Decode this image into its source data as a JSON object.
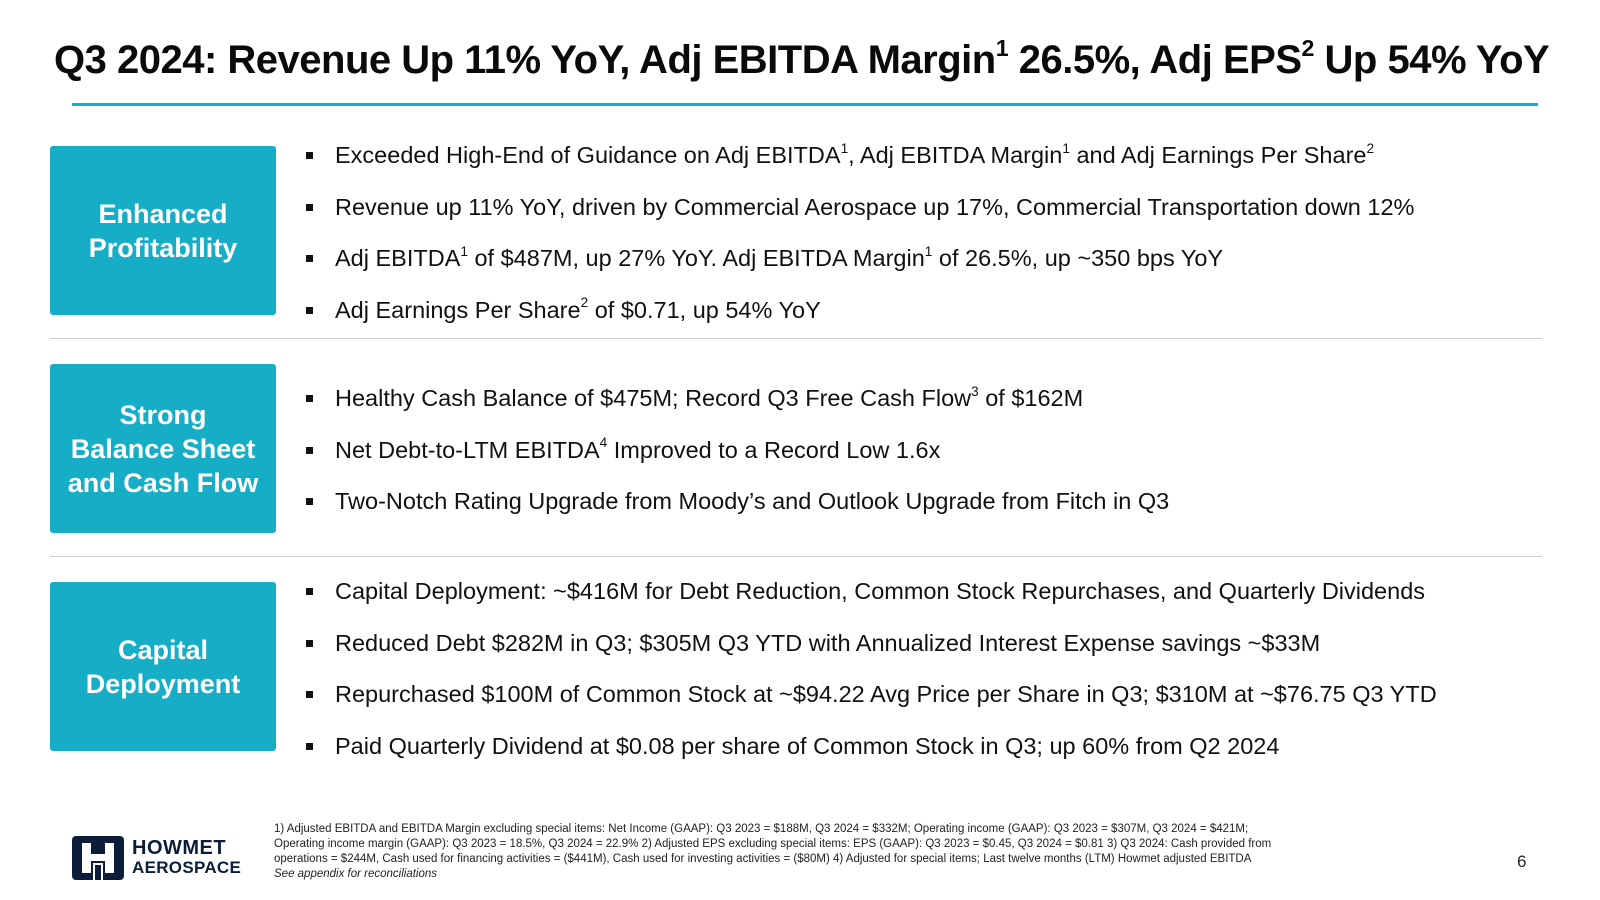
{
  "slide": {
    "title_parts": {
      "a": "Q3 2024: Revenue Up 11% YoY, Adj EBITDA Margin",
      "a_sup": "1",
      "b": " 26.5%, Adj EPS",
      "b_sup": "2",
      "c": " Up 54% YoY"
    },
    "accent_color": "#16adc6",
    "sections": [
      {
        "label": "Enhanced\nProfitability",
        "bullets": [
          [
            {
              "t": "Exceeded High-End of Guidance on Adj EBITDA"
            },
            {
              "sup": "1"
            },
            {
              "t": ", Adj EBITDA Margin"
            },
            {
              "sup": "1"
            },
            {
              "t": " and Adj Earnings Per Share"
            },
            {
              "sup": "2"
            }
          ],
          [
            {
              "t": "Revenue up 11% YoY, driven by Commercial Aerospace up 17%, Commercial Transportation down 12%"
            }
          ],
          [
            {
              "t": "Adj EBITDA"
            },
            {
              "sup": "1"
            },
            {
              "t": " of $487M, up 27% YoY.  Adj EBITDA Margin"
            },
            {
              "sup": "1"
            },
            {
              "t": " of 26.5%, up ~350 bps YoY"
            }
          ],
          [
            {
              "t": "Adj Earnings Per Share"
            },
            {
              "sup": "2"
            },
            {
              "t": " of $0.71, up 54% YoY"
            }
          ]
        ]
      },
      {
        "label": "Strong\nBalance Sheet\nand Cash Flow",
        "bullets": [
          [
            {
              "t": "Healthy Cash Balance of $475M; Record Q3 Free Cash Flow"
            },
            {
              "sup": "3"
            },
            {
              "t": " of $162M"
            }
          ],
          [
            {
              "t": "Net Debt-to-LTM EBITDA"
            },
            {
              "sup": "4"
            },
            {
              "t": " Improved to a Record Low 1.6x"
            }
          ],
          [
            {
              "t": "Two-Notch Rating Upgrade from Moody’s and Outlook Upgrade from Fitch in Q3"
            }
          ]
        ]
      },
      {
        "label": "Capital\nDeployment",
        "bullets": [
          [
            {
              "t": "Capital Deployment: ~$416M for Debt Reduction, Common Stock Repurchases, and Quarterly Dividends"
            }
          ],
          [
            {
              "t": "Reduced Debt $282M in Q3; $305M Q3 YTD with Annualized Interest Expense savings ~$33M"
            }
          ],
          [
            {
              "t": "Repurchased $100M of Common Stock at ~$94.22 Avg Price per Share in Q3; $310M at ~$76.75 Q3 YTD"
            }
          ],
          [
            {
              "t": "Paid Quarterly Dividend at $0.08 per share of Common Stock in Q3; up 60% from Q2 2024"
            }
          ]
        ]
      }
    ],
    "footnotes": {
      "line1": "1) Adjusted EBITDA and EBITDA Margin excluding special items: Net Income (GAAP): Q3 2023 = $188M, Q3 2024 = $332M;  Operating income (GAAP): Q3 2023 = $307M, Q3 2024 = $421M;",
      "line2": "Operating income margin (GAAP): Q3 2023 = 18.5%, Q3 2024 = 22.9%     2) Adjusted EPS excluding special items: EPS (GAAP): Q3 2023 = $0.45, Q3 2024 = $0.81     3) Q3 2024: Cash provided from",
      "line3": "operations = $244M, Cash used for financing activities = ($441M), Cash used for investing activities = ($80M)     4) Adjusted for special items; Last twelve months (LTM) Howmet adjusted EBITDA",
      "line4": "See appendix for reconciliations"
    },
    "logo": {
      "line1": "HOWMET",
      "line2": "AEROSPACE",
      "icon": "howmet-logo-icon"
    },
    "page_number": "6"
  }
}
